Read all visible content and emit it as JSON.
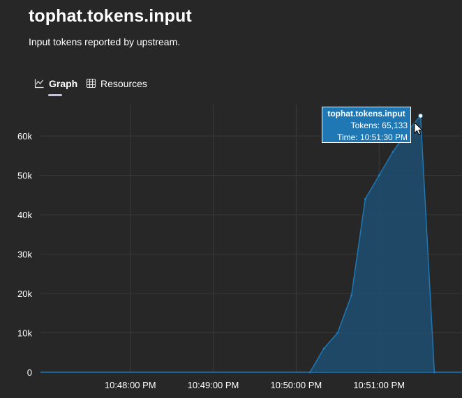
{
  "page": {
    "title": "tophat.tokens.input",
    "description": "Input tokens reported by upstream."
  },
  "tabs": [
    {
      "label": "Graph",
      "icon": "chart-icon",
      "selected": true
    },
    {
      "label": "Resources",
      "icon": "grid-icon",
      "selected": false
    }
  ],
  "colors": {
    "background": "#272727",
    "series_line": "#1f77b4",
    "series_fill": "#1f4f72",
    "tab_indicator": "#c9bfee"
  },
  "tooltip": {
    "title": "tophat.tokens.input",
    "value_text": "Tokens: 65,133",
    "time_text": "Time: 10:51:30 PM"
  },
  "chart_data": {
    "type": "area",
    "series": [
      {
        "x": [
          "10:50:10 PM",
          "10:50:20 PM",
          "10:50:30 PM",
          "10:50:40 PM",
          "10:50:50 PM",
          "10:51:00 PM",
          "10:51:10 PM",
          "10:51:20 PM",
          "10:51:30 PM",
          "10:51:40 PM"
        ],
        "values": [
          0,
          6000,
          10000,
          19500,
          44000,
          50000,
          56000,
          61000,
          65133,
          0
        ]
      }
    ],
    "x_ticks": [
      "10:48:00 PM",
      "10:49:00 PM",
      "10:50:00 PM",
      "10:51:00 PM"
    ],
    "y_ticks": [
      "0",
      "10k",
      "20k",
      "30k",
      "40k",
      "50k",
      "60k"
    ],
    "y_tick_values": [
      0,
      10000,
      20000,
      30000,
      40000,
      50000,
      60000
    ],
    "xlim": [
      "10:46:55 PM",
      "10:52:00 PM"
    ],
    "ylim": [
      0,
      68000
    ],
    "grid": true,
    "highlighted_point": {
      "x": "10:51:30 PM",
      "y": 65133
    }
  }
}
